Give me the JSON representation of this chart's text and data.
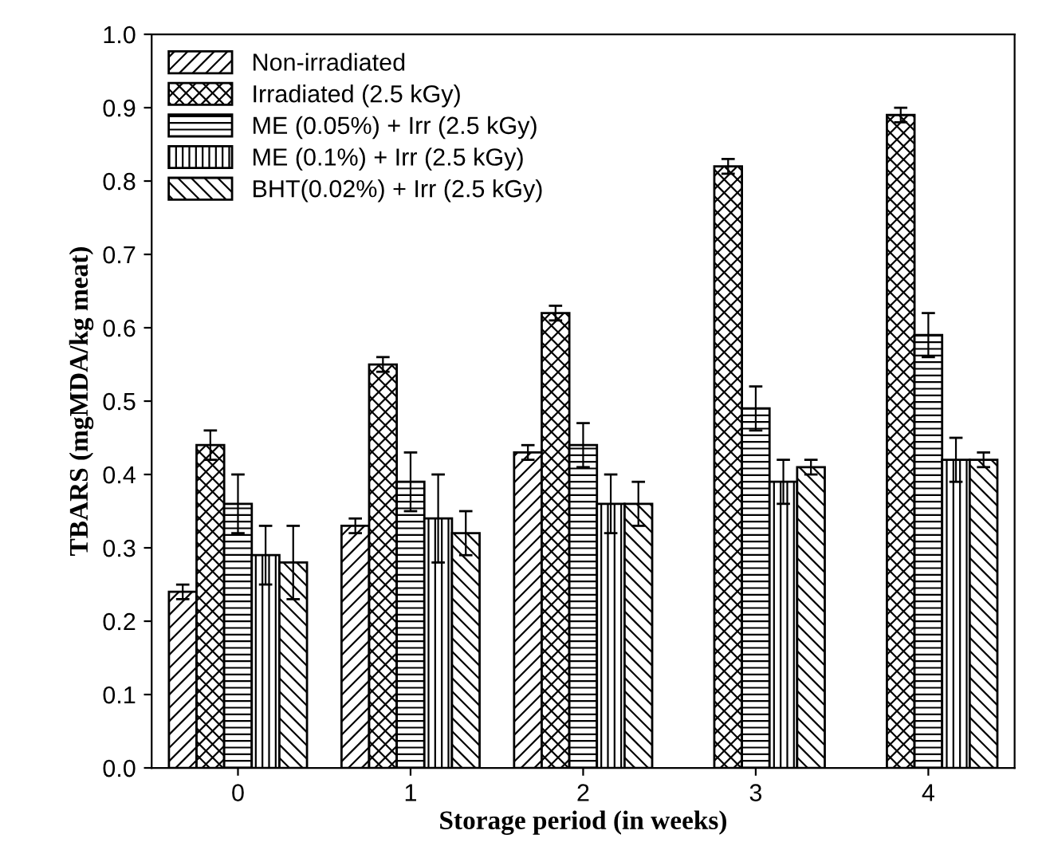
{
  "chart_data": {
    "type": "bar",
    "xlabel": "Storage period (in weeks)",
    "ylabel": "TBARS (mgMDA/kg meat)",
    "categories": [
      "0",
      "1",
      "2",
      "3",
      "4"
    ],
    "series": [
      {
        "name": "Non-irradiated",
        "color": "#000000",
        "values": [
          0.24,
          0.33,
          0.43,
          null,
          null
        ],
        "errors": [
          0.01,
          0.01,
          0.01,
          null,
          null
        ]
      },
      {
        "name": "Irradiated (2.5 kGy)",
        "color": "#000000",
        "values": [
          0.44,
          0.55,
          0.62,
          0.82,
          0.89
        ],
        "errors": [
          0.02,
          0.01,
          0.01,
          0.01,
          0.01
        ]
      },
      {
        "name": "ME (0.05%) + Irr (2.5 kGy)",
        "color": "#000000",
        "values": [
          0.36,
          0.39,
          0.44,
          0.49,
          0.59
        ],
        "errors": [
          0.04,
          0.04,
          0.03,
          0.03,
          0.03
        ]
      },
      {
        "name": "ME (0.1%) + Irr (2.5 kGy)",
        "color": "#000000",
        "values": [
          0.29,
          0.34,
          0.36,
          0.39,
          0.42
        ],
        "errors": [
          0.04,
          0.06,
          0.04,
          0.03,
          0.03
        ]
      },
      {
        "name": "BHT(0.02%) + Irr (2.5 kGy)",
        "color": "#000000",
        "values": [
          0.28,
          0.32,
          0.36,
          0.41,
          0.42
        ],
        "errors": [
          0.05,
          0.03,
          0.03,
          0.01,
          0.01
        ]
      }
    ],
    "ylim": [
      0.0,
      1.0
    ],
    "yticks": [
      {
        "value": 0,
        "label": "0.0"
      },
      0.1,
      0.2,
      0.3,
      0.4,
      0.5,
      0.6,
      0.7,
      0.8,
      0.9,
      {
        "value": 1,
        "label": "1.0"
      }
    ],
    "legend": "top left",
    "grid": false
  }
}
